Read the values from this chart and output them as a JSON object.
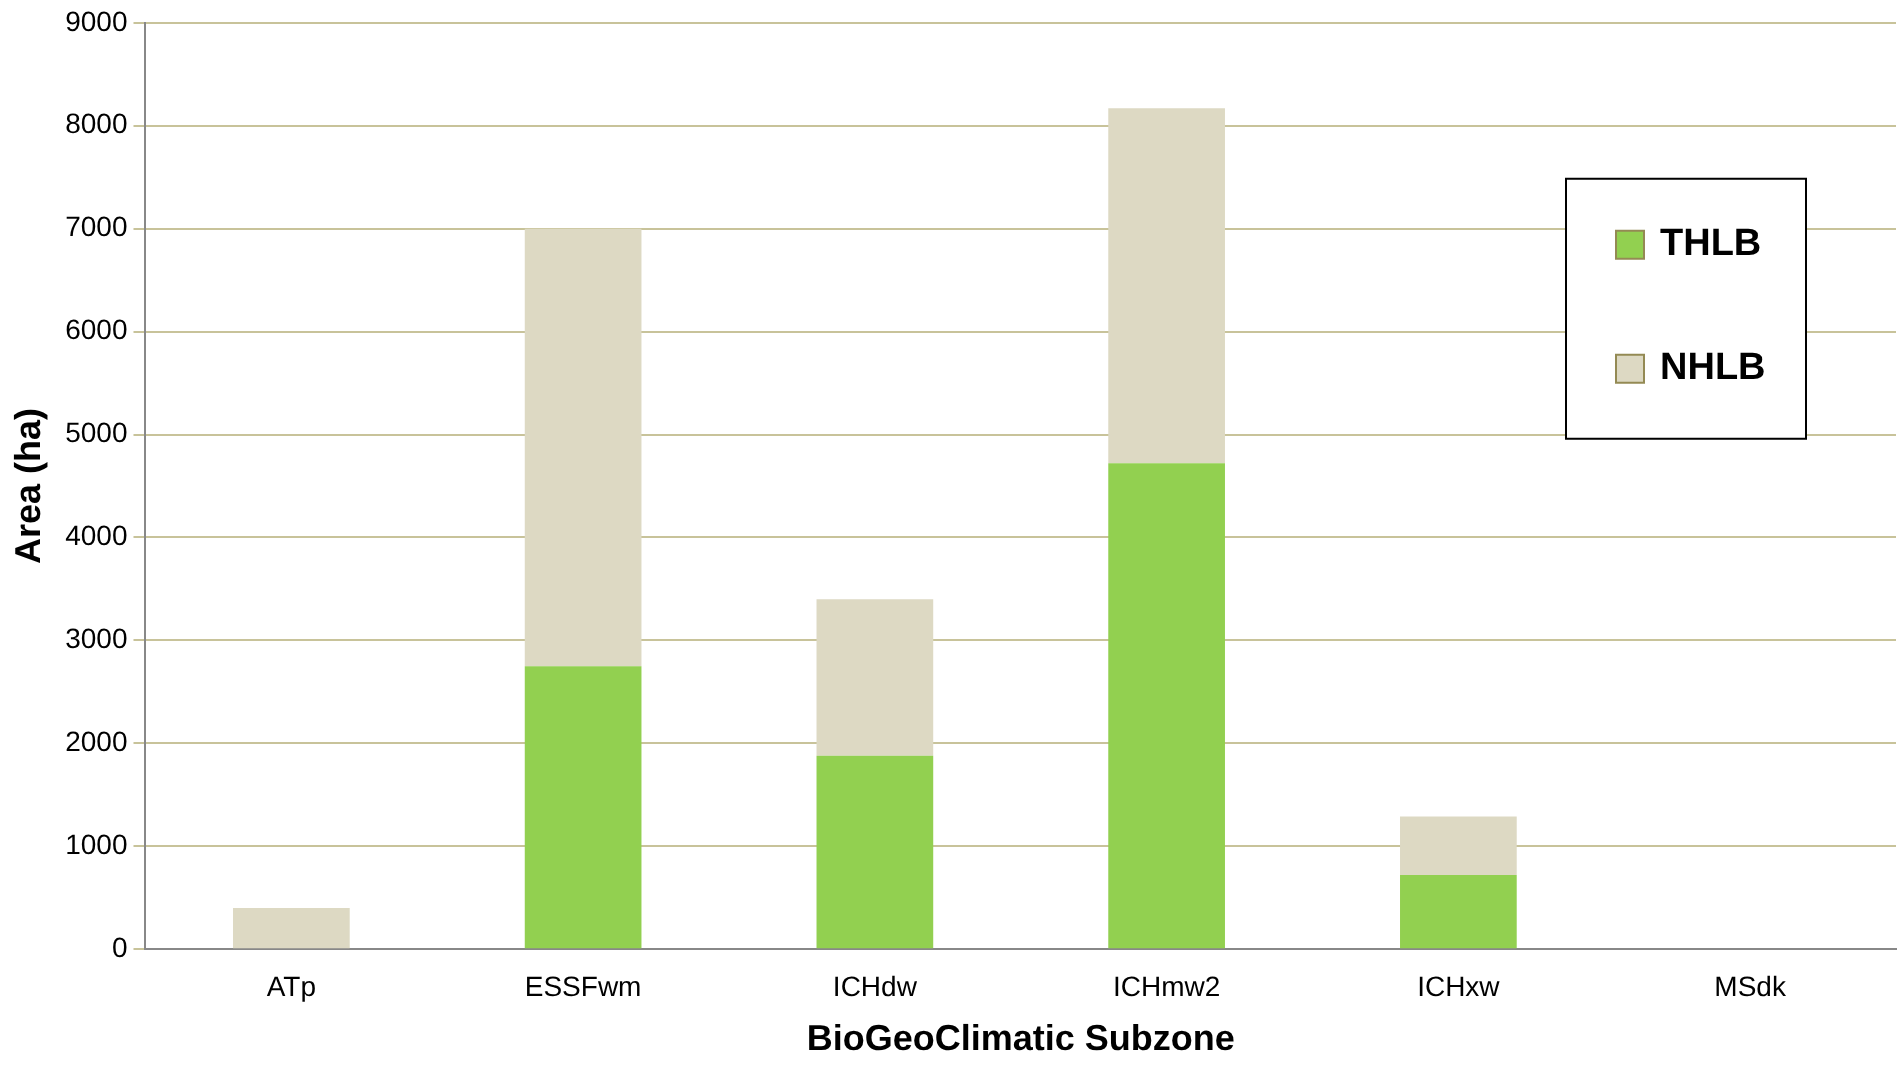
{
  "chart_data": {
    "type": "bar",
    "stacked": true,
    "xlabel": "BioGeoClimatic Subzone",
    "ylabel": "Area (ha)",
    "categories": [
      "ATp",
      "ESSFwm",
      "ICHdw",
      "ICHmw2",
      "ICHxw",
      "MSdk"
    ],
    "series": [
      {
        "name": "THLB",
        "color": "#92d050",
        "values": [
          0,
          2750,
          1880,
          4720,
          720,
          0
        ]
      },
      {
        "name": "NHLB",
        "color": "#ddd9c3",
        "values": [
          400,
          4250,
          1520,
          3450,
          570,
          0
        ]
      }
    ],
    "ylim": [
      0,
      9000
    ],
    "yticks": [
      0,
      1000,
      2000,
      3000,
      4000,
      5000,
      6000,
      7000,
      8000,
      9000
    ],
    "grid": "y",
    "legend": "top right"
  }
}
